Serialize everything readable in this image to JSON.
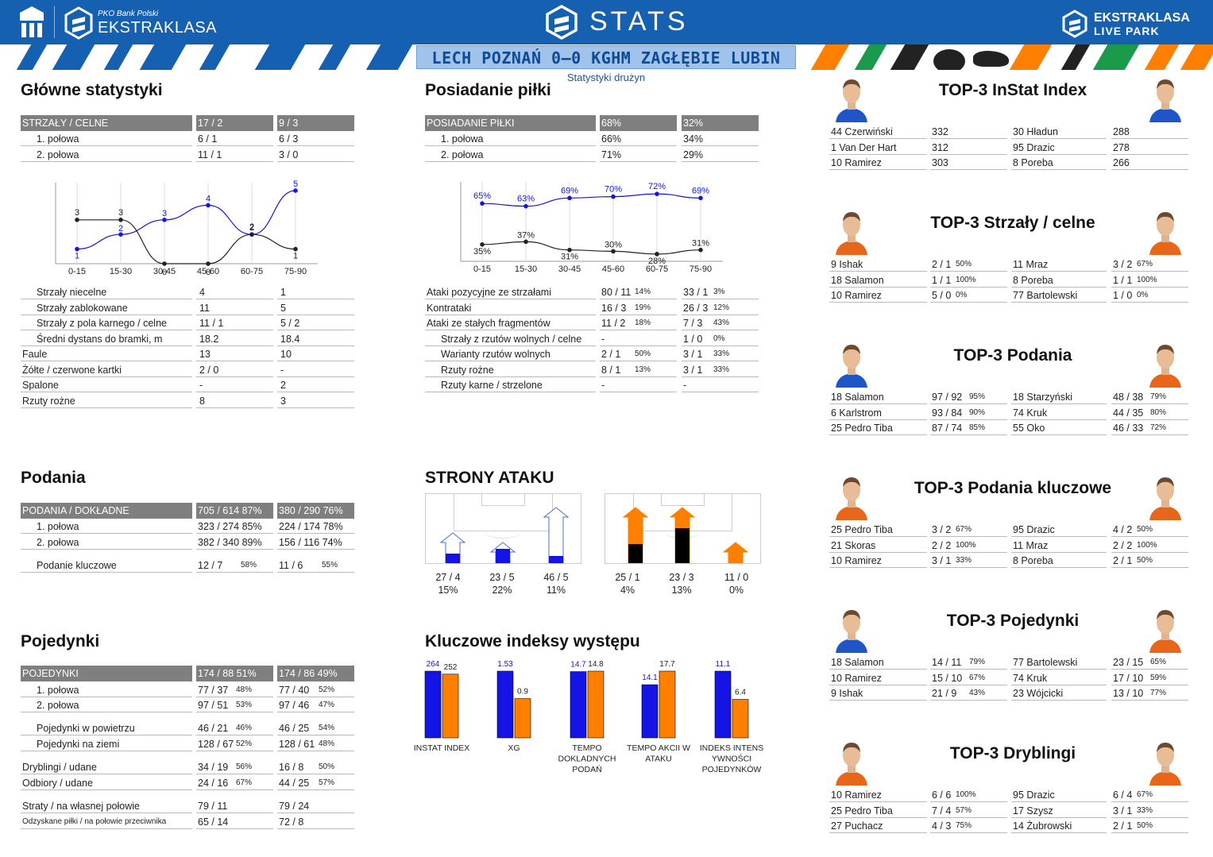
{
  "header": {
    "brand_left": "EKSTRAKLASA",
    "brand_left_small": "PKO Bank Polski",
    "title": "STATS",
    "brand_right_top": "EKSTRAKLASA",
    "brand_right_bottom": "LIVE PARK",
    "match": "LECH POZNAŃ 0–0 KGHM ZAGŁĘBIE LUBIN",
    "subtitle": "Statystyki drużyn"
  },
  "colors": {
    "blue": "#1560b0",
    "home": "#1414e6",
    "away": "#ff8000",
    "header_row": "#7f7f7f"
  },
  "main": {
    "title": "Główne statystyki",
    "header": [
      "STRZAŁY / CELNE",
      "17 / 2",
      "9 / 3"
    ],
    "half_rows": [
      [
        "1. połowa",
        "6 / 1",
        "6 / 3"
      ],
      [
        "2. połowa",
        "11 / 1",
        "3 / 0"
      ]
    ],
    "rows": [
      [
        "Strzały niecelne",
        "4",
        "1"
      ],
      [
        "Strzały zablokowane",
        "11",
        "5"
      ],
      [
        "Strzały z pola karnego / celne",
        "11 / 1",
        "5 / 2"
      ],
      [
        "Średni dystans do bramki, m",
        "18.2",
        "18.4"
      ],
      [
        "Faule",
        "13",
        "10"
      ],
      [
        "Żółte / czerwone kartki",
        "2 / 0",
        "-"
      ],
      [
        "Spalone",
        "-",
        "2"
      ],
      [
        "Rzuty rożne",
        "8",
        "3"
      ]
    ]
  },
  "shots_chart": {
    "ticks": [
      "0-15",
      "15-30",
      "30-45",
      "45-60",
      "60-75",
      "75-90"
    ],
    "home": [
      1,
      2,
      3,
      4,
      2,
      5
    ],
    "away": [
      3,
      3,
      0,
      0,
      2,
      1
    ]
  },
  "possession": {
    "title": "Posiadanie piłki",
    "header": [
      "POSIADANIE PIŁKI",
      "68%",
      "32%"
    ],
    "half_rows": [
      [
        "1. połowa",
        "66%",
        "34%"
      ],
      [
        "2. połowa",
        "71%",
        "29%"
      ]
    ],
    "rows": [
      [
        "Ataki pozycyjne ze strzałami",
        "80 / 11",
        "14%",
        "33 / 1",
        "3%"
      ],
      [
        "Kontrataki",
        "16 / 3",
        "19%",
        "26 / 3",
        "12%"
      ],
      [
        "Ataki ze stałych fragmentów",
        "11 / 2",
        "18%",
        "7 / 3",
        "43%"
      ],
      [
        "Strzały z rzutów wolnych / celne",
        "-",
        "",
        "1 / 0",
        "0%"
      ],
      [
        "Warianty rzutów wolnych",
        "2 / 1",
        "50%",
        "3 / 1",
        "33%"
      ],
      [
        "Rzuty rożne",
        "8 / 1",
        "13%",
        "3 / 1",
        "33%"
      ],
      [
        "Rzuty karne / strzelone",
        "-",
        "",
        "-",
        ""
      ]
    ]
  },
  "poss_chart": {
    "ticks": [
      "0-15",
      "15-30",
      "30-45",
      "45-60",
      "60-75",
      "75-90"
    ],
    "home": [
      65,
      63,
      69,
      70,
      72,
      69
    ],
    "away": [
      35,
      37,
      31,
      30,
      28,
      31
    ]
  },
  "passes": {
    "title": "Podania",
    "header": [
      "PODANIA / DOKŁADNE",
      "705 / 614 87%",
      "380 / 290 76%"
    ],
    "rows": [
      [
        "1. połowa",
        "323 / 274 85%",
        "224 / 174 78%"
      ],
      [
        "2. połowa",
        "382 / 340 89%",
        "156 / 116 74%"
      ],
      [
        "Podanie kluczowe",
        "12 / 7",
        "58%",
        "11 / 6",
        "55%"
      ]
    ]
  },
  "attack": {
    "title": "STRONY ATAKU",
    "home": [
      [
        "27 / 4",
        "15%",
        0.15
      ],
      [
        "23 / 5",
        "22%",
        0.22
      ],
      [
        "46 / 5",
        "11%",
        0.11
      ]
    ],
    "away": [
      [
        "25 / 1",
        "4%",
        0.04
      ],
      [
        "23 / 3",
        "13%",
        0.13
      ],
      [
        "11 / 0",
        "0%",
        0.0
      ]
    ]
  },
  "duels": {
    "title": "Pojedynki",
    "header": [
      "POJEDYNKI",
      "174 / 88 51%",
      "174 / 86 49%"
    ],
    "rows": [
      [
        "1. połowa",
        "77 / 37",
        "48%",
        "77 / 40",
        "52%"
      ],
      [
        "2. połowa",
        "97 / 51",
        "53%",
        "97 / 46",
        "47%"
      ],
      [
        "Pojedynki w powietrzu",
        "46 / 21",
        "46%",
        "46 / 25",
        "54%"
      ],
      [
        "Pojedynki na ziemi",
        "128 / 67",
        "52%",
        "128 / 61",
        "48%"
      ],
      [
        "Dryblingi / udane",
        "34 / 19",
        "56%",
        "16 / 8",
        "50%"
      ],
      [
        "Odbiory / udane",
        "24 / 16",
        "67%",
        "44 / 25",
        "57%"
      ],
      [
        "Straty / na własnej połowie",
        "79 / 11",
        "",
        "79 / 24",
        ""
      ],
      [
        "Odzyskane piłki / na połowie przeciwnika",
        "65 / 14",
        "",
        "72 / 8",
        ""
      ]
    ]
  },
  "key_index": {
    "title": "Kluczowe indeksy występu",
    "groups": [
      {
        "label": "INSTAT INDEX",
        "home": 264,
        "away": 252
      },
      {
        "label": "XG",
        "home": 1.53,
        "away": 0.9
      },
      {
        "label": "TEMPO DOKLADNYCH PODAŃ",
        "home": 14.7,
        "away": 14.8
      },
      {
        "label": "TEMPO AKCII W ATAKU",
        "home": 14.1,
        "away": 17.7
      },
      {
        "label": "INDEKS INTENS YWNOŚCI POJEDYNKÓW",
        "home": 11.1,
        "away": 6.4
      }
    ],
    "labels": [
      "INSTAT INDEX",
      "XG",
      "TEMPO\nDOKLADNYCH\nPODAŃ",
      "TEMPO AKCII W\nATAKU",
      "INDEKS INTENS\nYWNOŚCI\nPOJEDYNKÓW"
    ]
  },
  "top": [
    {
      "title": "TOP-3 InStat Index",
      "home": [
        [
          "44 Czerwiński",
          "332",
          ""
        ],
        [
          "1   Van Der Hart",
          "312",
          ""
        ],
        [
          "10 Ramirez",
          "303",
          ""
        ]
      ],
      "away": [
        [
          "30 Hładun",
          "288",
          ""
        ],
        [
          "95 Drazic",
          "278",
          ""
        ],
        [
          "8   Poreba",
          "266",
          ""
        ]
      ]
    },
    {
      "title": "TOP-3 Strzały / celne",
      "home": [
        [
          "9   Ishak",
          "2 / 1",
          "50%"
        ],
        [
          "18 Salamon",
          "1 / 1",
          "100%"
        ],
        [
          "10 Ramirez",
          "5 / 0",
          "0%"
        ]
      ],
      "away": [
        [
          "11 Mraz",
          "3 / 2",
          "67%"
        ],
        [
          "8   Poreba",
          "1 / 1",
          "100%"
        ],
        [
          "77 Bartolewski",
          "1 / 0",
          "0%"
        ]
      ]
    },
    {
      "title": "TOP-3 Podania",
      "home": [
        [
          "18 Salamon",
          "97 / 92",
          "95%"
        ],
        [
          "6   Karlstrom",
          "93 / 84",
          "90%"
        ],
        [
          "25 Pedro Tiba",
          "87 / 74",
          "85%"
        ]
      ],
      "away": [
        [
          "18 Starzyński",
          "48 / 38",
          "79%"
        ],
        [
          "74 Kruk",
          "44 / 35",
          "80%"
        ],
        [
          "55 Oko",
          "46 / 33",
          "72%"
        ]
      ]
    },
    {
      "title": "TOP-3 Podania kluczowe",
      "home": [
        [
          "25 Pedro Tiba",
          "3 / 2",
          "67%"
        ],
        [
          "21 Skoras",
          "2 / 2",
          "100%"
        ],
        [
          "10 Ramirez",
          "3 / 1",
          "33%"
        ]
      ],
      "away": [
        [
          "95 Drazic",
          "4 / 2",
          "50%"
        ],
        [
          "11 Mraz",
          "2 / 2",
          "100%"
        ],
        [
          "8   Poreba",
          "2 / 1",
          "50%"
        ]
      ]
    },
    {
      "title": "TOP-3 Pojedynki",
      "home": [
        [
          "18 Salamon",
          "14 / 11",
          "79%"
        ],
        [
          "10 Ramirez",
          "15 / 10",
          "67%"
        ],
        [
          "9   Ishak",
          "21 / 9",
          "43%"
        ]
      ],
      "away": [
        [
          "77 Bartolewski",
          "23 / 15",
          "65%"
        ],
        [
          "74 Kruk",
          "17 / 10",
          "59%"
        ],
        [
          "23 Wójcicki",
          "13 / 10",
          "77%"
        ]
      ]
    },
    {
      "title": "TOP-3 Dryblingi",
      "home": [
        [
          "10 Ramirez",
          "6 / 6",
          "100%"
        ],
        [
          "25 Pedro Tiba",
          "7 / 4",
          "57%"
        ],
        [
          "27 Puchacz",
          "4 / 3",
          "75%"
        ]
      ],
      "away": [
        [
          "95 Drazic",
          "6 / 4",
          "67%"
        ],
        [
          "17 Szysz",
          "3 / 1",
          "33%"
        ],
        [
          "14 Żubrowski",
          "2 / 1",
          "50%"
        ]
      ]
    }
  ]
}
